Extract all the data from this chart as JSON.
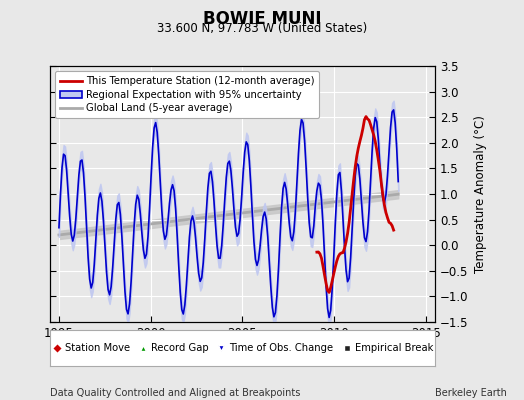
{
  "title": "BOWIE MUNI",
  "subtitle": "33.600 N, 97.783 W (United States)",
  "xlabel_bottom": "Data Quality Controlled and Aligned at Breakpoints",
  "xlabel_right": "Berkeley Earth",
  "ylabel": "Temperature Anomaly (°C)",
  "xlim": [
    1994.5,
    2015.5
  ],
  "ylim": [
    -1.5,
    3.5
  ],
  "yticks": [
    -1.5,
    -1.0,
    -0.5,
    0.0,
    0.5,
    1.0,
    1.5,
    2.0,
    2.5,
    3.0,
    3.5
  ],
  "xticks": [
    1995,
    2000,
    2005,
    2010,
    2015
  ],
  "bg_color": "#e8e8e8",
  "plot_bg_color": "#e8e8e8",
  "grid_color": "#ffffff",
  "red_line_color": "#cc0000",
  "blue_line_color": "#0000cc",
  "blue_fill_color": "#c0c8f0",
  "gray_line_color": "#aaaaaa",
  "gray_fill_color": "#c8c8c8",
  "legend_marker_red": "#cc0000",
  "legend_marker_green": "#009900",
  "legend_marker_blue": "#0000cc",
  "legend_marker_black": "#222222"
}
